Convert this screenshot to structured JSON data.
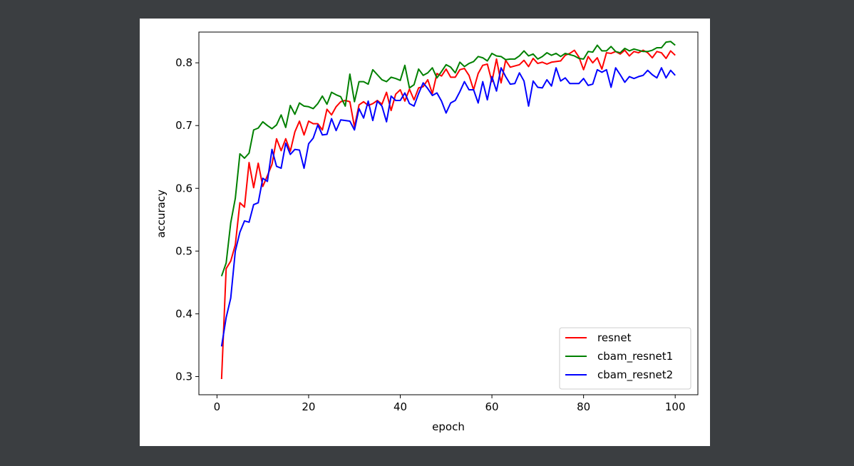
{
  "chart_data": {
    "type": "line",
    "title": "",
    "xlabel": "epoch",
    "ylabel": "accuracy",
    "xlim": [
      -3.95,
      104.95
    ],
    "ylim": [
      0.271,
      0.849
    ],
    "xticks": [
      0,
      20,
      40,
      60,
      80,
      100
    ],
    "yticks": [
      0.3,
      0.4,
      0.5,
      0.6,
      0.7,
      0.8
    ],
    "xtick_labels": [
      "0",
      "20",
      "40",
      "60",
      "80",
      "100"
    ],
    "ytick_labels": [
      "0.3",
      "0.4",
      "0.5",
      "0.6",
      "0.7",
      "0.8"
    ],
    "grid": false,
    "legend_position": "lower-right",
    "x": [
      1,
      2,
      3,
      4,
      5,
      6,
      7,
      8,
      9,
      10,
      11,
      12,
      13,
      14,
      15,
      16,
      17,
      18,
      19,
      20,
      21,
      22,
      23,
      24,
      25,
      26,
      27,
      28,
      29,
      30,
      31,
      32,
      33,
      34,
      35,
      36,
      37,
      38,
      39,
      40,
      41,
      42,
      43,
      44,
      45,
      46,
      47,
      48,
      49,
      50,
      51,
      52,
      53,
      54,
      55,
      56,
      57,
      58,
      59,
      60,
      61,
      62,
      63,
      64,
      65,
      66,
      67,
      68,
      69,
      70,
      71,
      72,
      73,
      74,
      75,
      76,
      77,
      78,
      79,
      80,
      81,
      82,
      83,
      84,
      85,
      86,
      87,
      88,
      89,
      90,
      91,
      92,
      93,
      94,
      95,
      96,
      97,
      98,
      99,
      100
    ],
    "series": [
      {
        "name": "resnet",
        "color": "#ff0000",
        "values": [
          0.296,
          0.472,
          0.484,
          0.51,
          0.577,
          0.57,
          0.641,
          0.601,
          0.64,
          0.603,
          0.62,
          0.638,
          0.679,
          0.66,
          0.679,
          0.659,
          0.69,
          0.707,
          0.685,
          0.707,
          0.703,
          0.703,
          0.693,
          0.726,
          0.717,
          0.73,
          0.738,
          0.74,
          0.738,
          0.698,
          0.733,
          0.738,
          0.732,
          0.735,
          0.74,
          0.734,
          0.753,
          0.724,
          0.75,
          0.757,
          0.739,
          0.758,
          0.741,
          0.76,
          0.762,
          0.773,
          0.751,
          0.783,
          0.779,
          0.79,
          0.777,
          0.777,
          0.789,
          0.791,
          0.78,
          0.757,
          0.783,
          0.796,
          0.798,
          0.77,
          0.806,
          0.768,
          0.804,
          0.793,
          0.795,
          0.797,
          0.804,
          0.794,
          0.807,
          0.799,
          0.801,
          0.798,
          0.801,
          0.802,
          0.803,
          0.812,
          0.815,
          0.82,
          0.809,
          0.789,
          0.81,
          0.8,
          0.808,
          0.79,
          0.816,
          0.815,
          0.818,
          0.814,
          0.82,
          0.811,
          0.818,
          0.816,
          0.82,
          0.816,
          0.808,
          0.818,
          0.816,
          0.807,
          0.819,
          0.812
        ]
      },
      {
        "name": "cbam_resnet1",
        "color": "#008000",
        "values": [
          0.46,
          0.481,
          0.545,
          0.584,
          0.655,
          0.648,
          0.656,
          0.693,
          0.696,
          0.706,
          0.7,
          0.695,
          0.701,
          0.717,
          0.697,
          0.732,
          0.718,
          0.736,
          0.731,
          0.73,
          0.727,
          0.735,
          0.747,
          0.734,
          0.753,
          0.749,
          0.746,
          0.731,
          0.782,
          0.738,
          0.77,
          0.77,
          0.766,
          0.789,
          0.781,
          0.773,
          0.77,
          0.777,
          0.775,
          0.772,
          0.796,
          0.76,
          0.765,
          0.79,
          0.78,
          0.784,
          0.792,
          0.776,
          0.786,
          0.797,
          0.793,
          0.784,
          0.801,
          0.794,
          0.799,
          0.802,
          0.81,
          0.808,
          0.803,
          0.815,
          0.811,
          0.81,
          0.805,
          0.806,
          0.806,
          0.811,
          0.819,
          0.811,
          0.814,
          0.806,
          0.81,
          0.816,
          0.812,
          0.815,
          0.81,
          0.815,
          0.813,
          0.811,
          0.807,
          0.806,
          0.818,
          0.817,
          0.828,
          0.819,
          0.819,
          0.826,
          0.818,
          0.816,
          0.823,
          0.819,
          0.822,
          0.82,
          0.818,
          0.818,
          0.82,
          0.824,
          0.824,
          0.833,
          0.834,
          0.828
        ]
      },
      {
        "name": "cbam_resnet2",
        "color": "#0000ff",
        "values": [
          0.348,
          0.394,
          0.425,
          0.5,
          0.53,
          0.548,
          0.546,
          0.574,
          0.577,
          0.616,
          0.611,
          0.662,
          0.635,
          0.632,
          0.672,
          0.654,
          0.662,
          0.661,
          0.632,
          0.671,
          0.68,
          0.701,
          0.685,
          0.686,
          0.711,
          0.692,
          0.709,
          0.708,
          0.707,
          0.693,
          0.727,
          0.712,
          0.739,
          0.708,
          0.739,
          0.731,
          0.706,
          0.747,
          0.74,
          0.74,
          0.752,
          0.735,
          0.731,
          0.751,
          0.768,
          0.759,
          0.748,
          0.752,
          0.739,
          0.72,
          0.736,
          0.74,
          0.754,
          0.77,
          0.757,
          0.757,
          0.736,
          0.77,
          0.741,
          0.778,
          0.755,
          0.792,
          0.778,
          0.766,
          0.767,
          0.784,
          0.771,
          0.731,
          0.771,
          0.761,
          0.76,
          0.773,
          0.763,
          0.792,
          0.771,
          0.776,
          0.767,
          0.767,
          0.767,
          0.775,
          0.764,
          0.766,
          0.789,
          0.785,
          0.789,
          0.761,
          0.792,
          0.781,
          0.769,
          0.778,
          0.775,
          0.778,
          0.78,
          0.788,
          0.781,
          0.776,
          0.792,
          0.776,
          0.788,
          0.78
        ]
      }
    ]
  }
}
